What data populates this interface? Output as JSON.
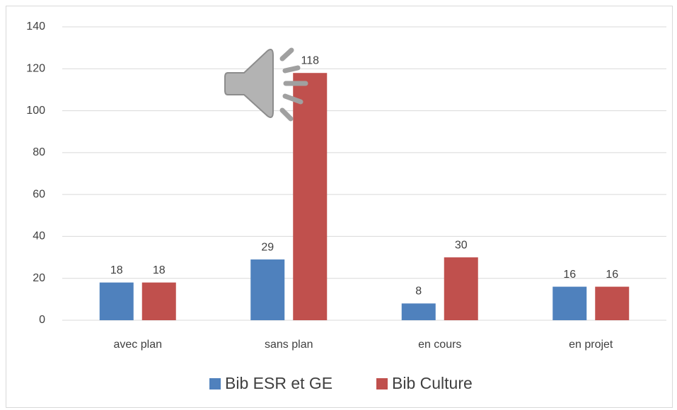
{
  "chart_data": {
    "type": "bar",
    "categories": [
      "avec plan",
      "sans plan",
      "en cours",
      "en projet"
    ],
    "series": [
      {
        "name": "Bib ESR et GE",
        "color": "#4f81bd",
        "values": [
          18,
          29,
          8,
          16
        ]
      },
      {
        "name": "Bib Culture",
        "color": "#c0504d",
        "values": [
          18,
          118,
          30,
          16
        ]
      }
    ],
    "ylim": [
      0,
      140
    ],
    "yticks": [
      0,
      20,
      40,
      60,
      80,
      100,
      120,
      140
    ],
    "grid": true,
    "legend": "bottom"
  }
}
